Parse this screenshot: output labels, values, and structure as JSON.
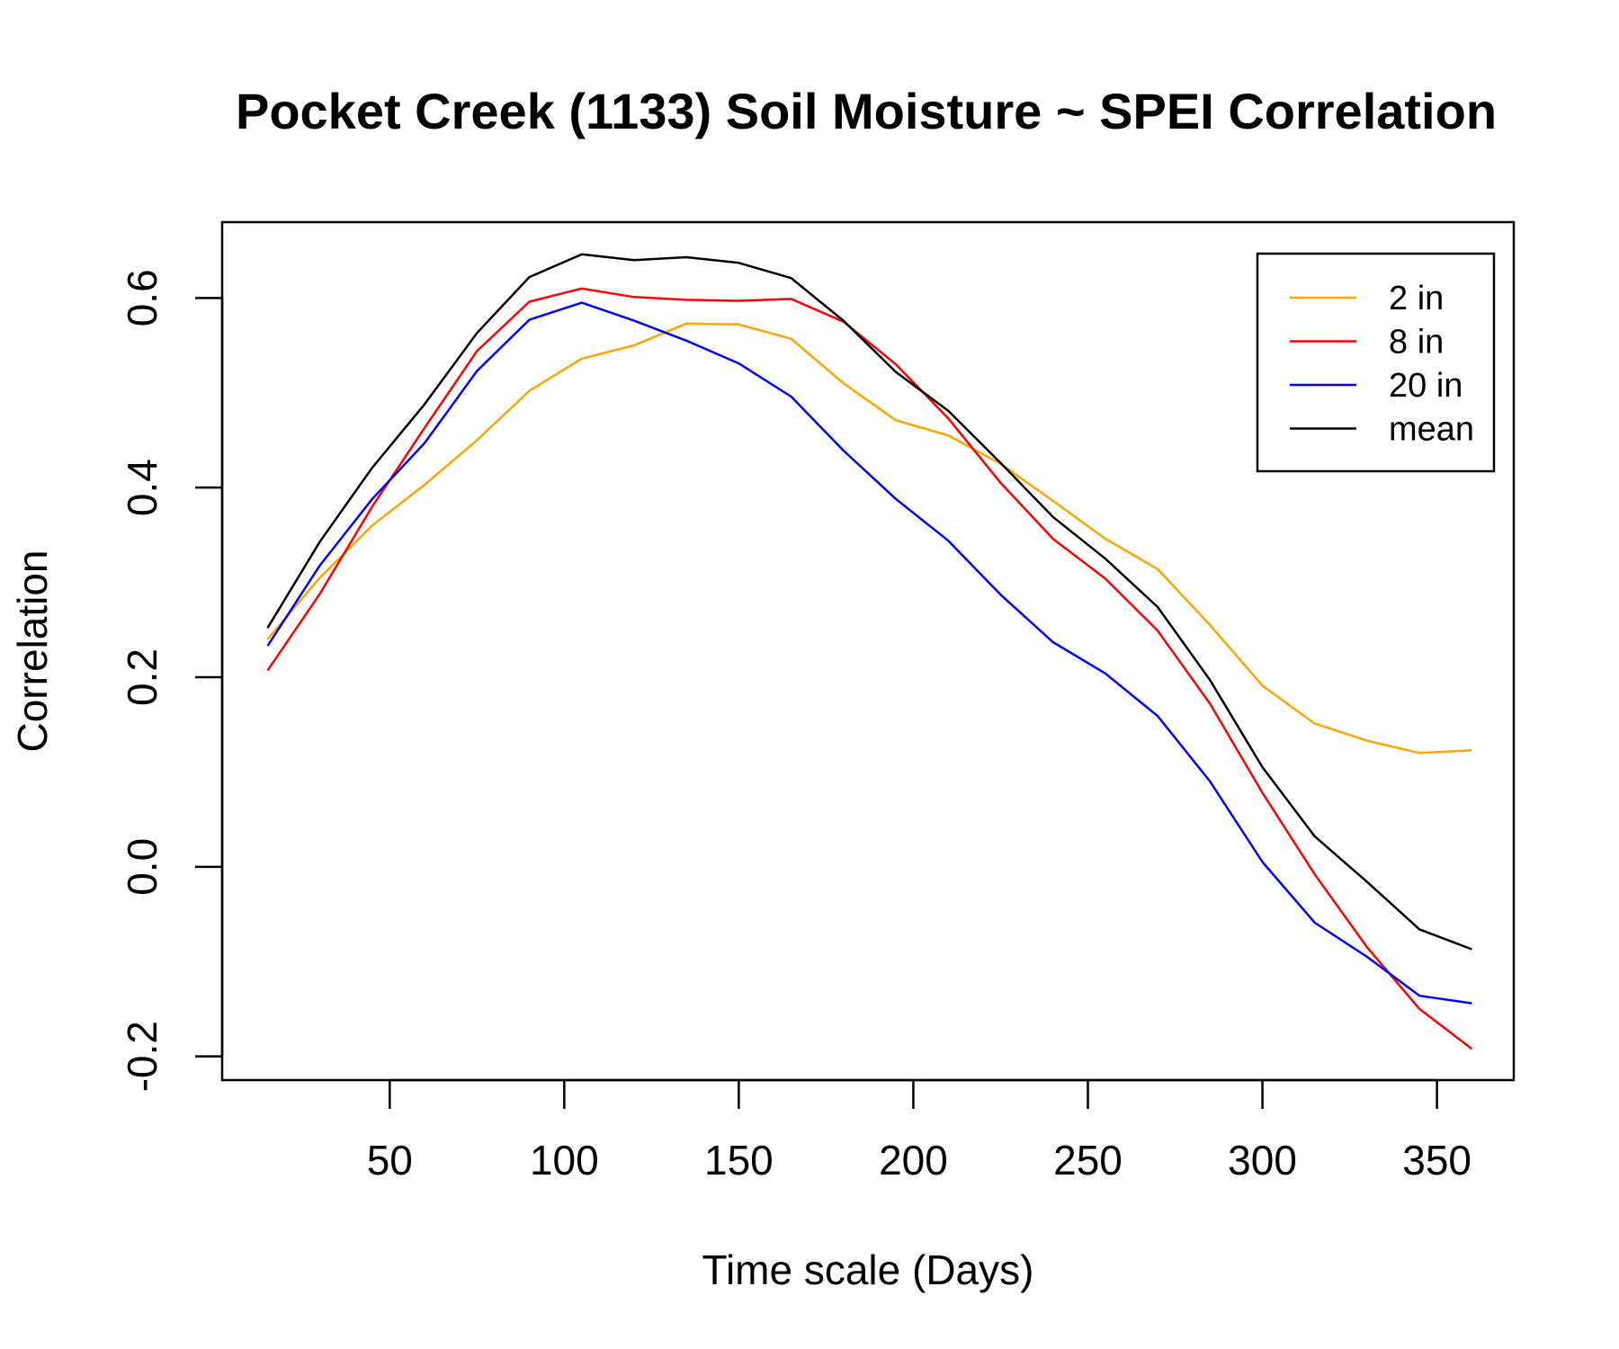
{
  "chart_data": {
    "type": "line",
    "title": "Pocket Creek (1133) Soil Moisture ~ SPEI Correlation",
    "xlabel": "Time scale (Days)",
    "ylabel": "Correlation",
    "xlim": [
      2,
      372
    ],
    "ylim": [
      -0.225,
      0.68
    ],
    "x_ticks": [
      50,
      100,
      150,
      200,
      250,
      300,
      350
    ],
    "x_tick_labels": [
      "50",
      "100",
      "150",
      "200",
      "250",
      "300",
      "350"
    ],
    "y_ticks": [
      -0.2,
      0.0,
      0.2,
      0.4,
      0.6
    ],
    "y_tick_labels": [
      "-0.2",
      "0.0",
      "0.2",
      "0.4",
      "0.6"
    ],
    "grid": false,
    "legend_position": "top-right",
    "x": [
      15,
      30,
      45,
      60,
      75,
      90,
      105,
      120,
      135,
      150,
      165,
      180,
      195,
      210,
      225,
      240,
      255,
      270,
      285,
      300,
      315,
      330,
      345,
      360
    ],
    "series": [
      {
        "name": "2 in",
        "color": "#FFA500",
        "values": [
          0.24,
          0.305,
          0.36,
          0.403,
          0.45,
          0.502,
          0.536,
          0.55,
          0.573,
          0.572,
          0.557,
          0.51,
          0.471,
          0.455,
          0.425,
          0.386,
          0.346,
          0.314,
          0.255,
          0.191,
          0.151,
          0.133,
          0.12,
          0.123
        ]
      },
      {
        "name": "8 in",
        "color": "#FF0000",
        "values": [
          0.207,
          0.288,
          0.38,
          0.463,
          0.544,
          0.596,
          0.61,
          0.601,
          0.598,
          0.597,
          0.599,
          0.575,
          0.53,
          0.473,
          0.405,
          0.346,
          0.304,
          0.249,
          0.172,
          0.078,
          -0.008,
          -0.085,
          -0.15,
          -0.192
        ]
      },
      {
        "name": "20 in",
        "color": "#0000FF",
        "values": [
          0.233,
          0.318,
          0.388,
          0.447,
          0.523,
          0.577,
          0.595,
          0.576,
          0.555,
          0.531,
          0.496,
          0.439,
          0.388,
          0.344,
          0.287,
          0.237,
          0.204,
          0.159,
          0.09,
          0.005,
          -0.059,
          -0.095,
          -0.136,
          -0.144
        ]
      },
      {
        "name": "mean",
        "color": "#000000",
        "values": [
          0.252,
          0.343,
          0.421,
          0.488,
          0.563,
          0.622,
          0.646,
          0.64,
          0.643,
          0.637,
          0.621,
          0.576,
          0.522,
          0.481,
          0.426,
          0.369,
          0.325,
          0.274,
          0.197,
          0.105,
          0.032,
          -0.016,
          -0.066,
          -0.087
        ]
      }
    ]
  }
}
